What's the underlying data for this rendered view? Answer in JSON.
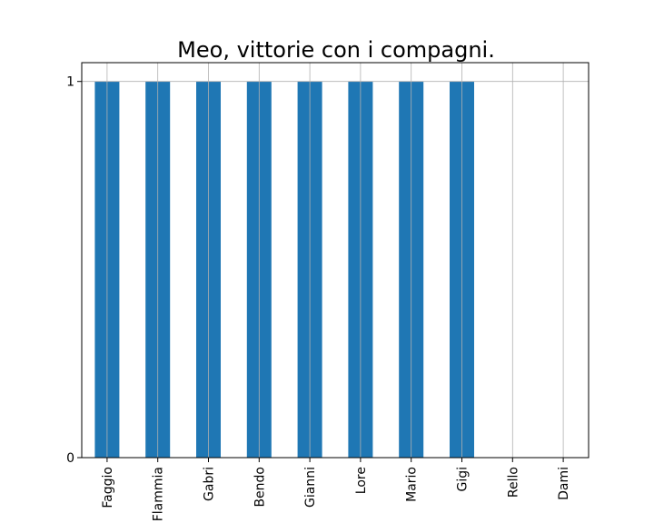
{
  "colors": {
    "bar": "#1f77b4",
    "grid": "#b0b0b0",
    "axis": "#000000",
    "background": "#ffffff"
  },
  "chart_data": {
    "type": "bar",
    "title": "Meo, vittorie con i compagni.",
    "xlabel": "",
    "ylabel": "",
    "categories": [
      "Faggio",
      "Flammia",
      "Gabri",
      "Bendo",
      "Gianni",
      "Lore",
      "Mario",
      "Gigi",
      "Rello",
      "Dami"
    ],
    "values": [
      1,
      1,
      1,
      1,
      1,
      1,
      1,
      1,
      0,
      0
    ],
    "ylim": [
      0,
      1.05
    ],
    "yticks": [
      0,
      1
    ],
    "grid": true
  }
}
